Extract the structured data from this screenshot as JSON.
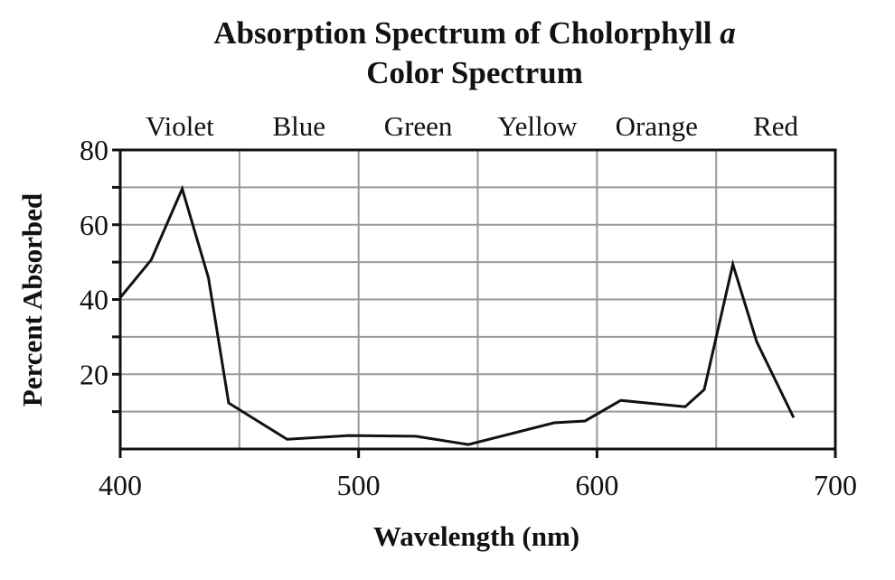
{
  "chart_data": {
    "type": "line",
    "title": "Absorption Spectrum of Cholorphyll",
    "title_italic": "a",
    "subtitle": "Color Spectrum",
    "xlabel": "Wavelength (nm)",
    "ylabel": "Percent Absorbed",
    "xlim": [
      400,
      700
    ],
    "ylim": [
      0,
      80
    ],
    "x_ticks": [
      400,
      500,
      600,
      700
    ],
    "y_ticks": [
      20,
      40,
      60,
      80
    ],
    "grid": true,
    "color_bands": [
      {
        "label": "Violet",
        "range": [
          400,
          450
        ]
      },
      {
        "label": "Blue",
        "range": [
          450,
          500
        ]
      },
      {
        "label": "Green",
        "range": [
          500,
          550
        ]
      },
      {
        "label": "Yellow",
        "range": [
          550,
          600
        ]
      },
      {
        "label": "Orange",
        "range": [
          600,
          650
        ]
      },
      {
        "label": "Red",
        "range": [
          650,
          700
        ]
      }
    ],
    "series": [
      {
        "name": "Chlorophyll a",
        "x": [
          400,
          413,
          426,
          437,
          445.5,
          470,
          496,
          524,
          546,
          582,
          595,
          610,
          637,
          645,
          657,
          667,
          682.5
        ],
        "y": [
          40.5,
          50.6,
          69.6,
          45.8,
          12.3,
          2.6,
          3.6,
          3.4,
          1.2,
          7,
          7.5,
          13,
          11.3,
          15.9,
          49.4,
          28.7,
          8.4
        ]
      }
    ]
  }
}
